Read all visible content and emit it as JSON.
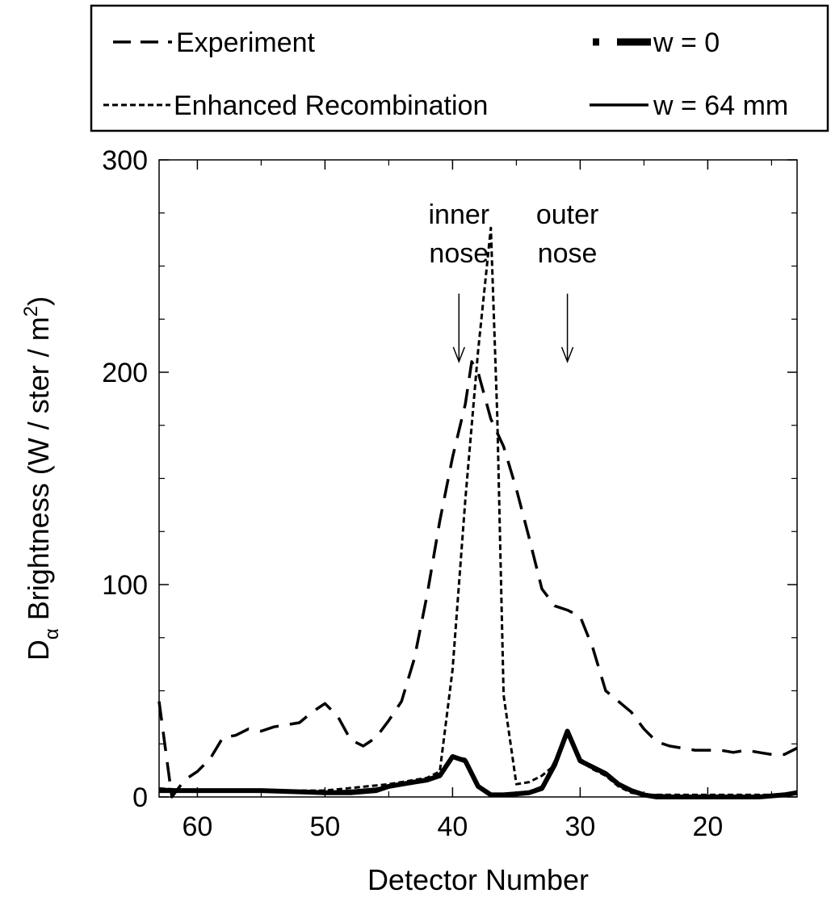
{
  "chart_data": {
    "type": "line",
    "xlabel": "Detector Number",
    "ylabel": {
      "main": "D",
      "sub": "α",
      "rest": " Brightness  (W / ster / m",
      "sup": "2",
      "end": ")"
    },
    "xlim": [
      63,
      13
    ],
    "ylim": [
      0,
      300
    ],
    "x_reversed": true,
    "x_ticks": [
      60,
      50,
      40,
      30,
      20
    ],
    "x_ticks_minor": [
      55,
      45,
      35,
      25,
      15
    ],
    "y_ticks": [
      0,
      100,
      200,
      300
    ],
    "y_ticks_minor": [
      25,
      50,
      75,
      125,
      150,
      175,
      225,
      250,
      275
    ],
    "grid": false,
    "legend_placement": "top",
    "series": [
      {
        "name": "Experiment",
        "style": "long-dash",
        "x": [
          63,
          62,
          61,
          60,
          59,
          58,
          57,
          56,
          55,
          54,
          53,
          52,
          51,
          50,
          49,
          48,
          47,
          46,
          45,
          44,
          43,
          42,
          41,
          40,
          39,
          38.5,
          38,
          37,
          36,
          35,
          34,
          33,
          32,
          31,
          30,
          29,
          28,
          27,
          26,
          25,
          24,
          23,
          22,
          21,
          20,
          19,
          18,
          17,
          16,
          15,
          14,
          13
        ],
        "y": [
          45,
          0,
          8,
          12,
          18,
          28,
          29,
          32,
          31,
          33,
          34,
          35,
          40,
          44,
          38,
          27,
          24,
          28,
          36,
          45,
          65,
          95,
          130,
          160,
          185,
          205,
          200,
          178,
          165,
          145,
          122,
          98,
          90,
          88,
          85,
          70,
          50,
          45,
          40,
          32,
          26,
          24,
          23,
          22,
          22,
          22,
          21,
          22,
          21,
          20,
          20,
          23
        ]
      },
      {
        "name": "Enhanced Recombination",
        "style": "short-dash",
        "x": [
          63,
          60,
          55,
          50,
          45,
          43,
          42,
          41,
          40,
          39,
          38,
          37,
          36.5,
          36,
          35,
          34,
          33,
          32,
          31,
          30,
          29,
          28,
          27,
          26,
          25,
          24,
          20,
          15,
          13
        ],
        "y": [
          4,
          3,
          3,
          3,
          6,
          8,
          9,
          12,
          60,
          140,
          210,
          268,
          180,
          48,
          6,
          7,
          10,
          15,
          30,
          17,
          13,
          10,
          5,
          2,
          1,
          1,
          1,
          1,
          2
        ]
      },
      {
        "name": "w = 0",
        "style": "thick-solid",
        "x": [
          63,
          60,
          55,
          50,
          48,
          46,
          45,
          44,
          43,
          42,
          41,
          40,
          39,
          38,
          37,
          36,
          35,
          34,
          33,
          32,
          31,
          30,
          29,
          28,
          27,
          26,
          25,
          24,
          22,
          20,
          18,
          16,
          14,
          13
        ],
        "y": [
          3,
          3,
          3,
          2,
          2,
          3,
          5,
          6,
          7,
          8,
          10,
          19,
          17,
          5,
          1,
          1,
          1.5,
          2,
          4,
          15,
          31,
          17,
          14,
          11,
          6,
          3,
          1,
          0,
          0,
          0,
          0,
          0,
          1,
          2
        ]
      },
      {
        "name": "w = 64 mm",
        "style": "solid",
        "x": [
          63,
          60,
          55,
          50,
          48,
          46,
          45,
          44,
          43,
          42,
          41,
          40,
          39,
          38,
          37,
          36,
          35,
          34,
          33,
          32,
          31,
          30,
          29,
          28,
          27,
          26,
          25,
          24,
          22,
          20,
          18,
          16,
          14,
          13
        ],
        "y": [
          4,
          3,
          3,
          2.5,
          3,
          4,
          5,
          6,
          7,
          8,
          11,
          19,
          18,
          5,
          1,
          1,
          1.5,
          2.5,
          5,
          17,
          29,
          18,
          14,
          11,
          6,
          3,
          1,
          1,
          0.5,
          0.5,
          0.5,
          0.5,
          1.5,
          2
        ]
      }
    ],
    "annotations": [
      {
        "id": "inner",
        "lines": [
          "inner",
          "nose"
        ],
        "x": 39.5,
        "text_y": 270,
        "arrow_top": 237,
        "arrow_bottom": 205
      },
      {
        "id": "outer",
        "lines": [
          "outer",
          "nose"
        ],
        "x": 31,
        "text_y": 270,
        "arrow_top": 237,
        "arrow_bottom": 205
      }
    ]
  }
}
